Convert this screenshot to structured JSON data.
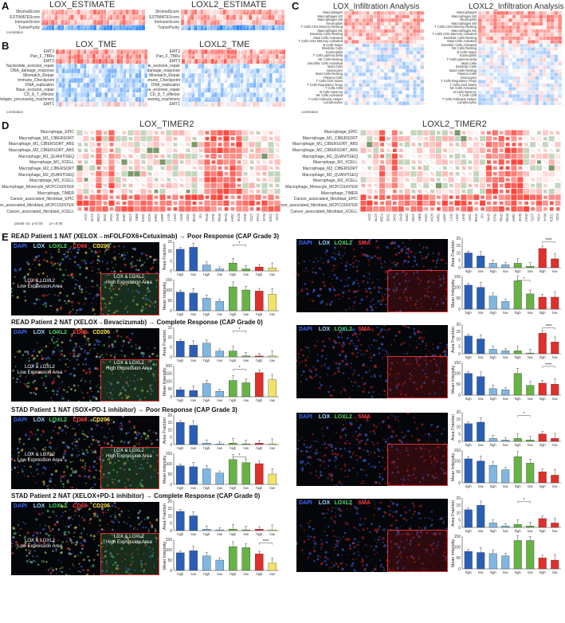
{
  "panels": {
    "A": {
      "label": "A",
      "left_title": "LOX_ESTIMATE",
      "right_title": "LOXL2_ESTIMATE",
      "rows": [
        "StromalScore",
        "ESTIMATEScore",
        "ImmuneScore",
        "TumorPurity"
      ],
      "legend": "correlation"
    },
    "B": {
      "label": "B",
      "left_title": "LOX_TME",
      "right_title": "LOXL2_TME",
      "rows": [
        "EMT2",
        "Pan_F_TBRs",
        "EMT3",
        "Nucleotide_excision_repair",
        "DNA_damage_response",
        "Mismatch_Repair",
        "Immune_Checkpoint",
        "DNA_replication",
        "Base_excision_repair",
        "CD_8_T_effector",
        "Antigen_processing_machinery",
        "EMT1"
      ],
      "legend": "correlation"
    },
    "C": {
      "label": "C",
      "left_title": "LOX_Infiltration Analysis",
      "right_title": "LOXL2_Infiltration Analysis",
      "left_rows": [
        "Macrophages",
        "Macrophages M2",
        "Macrophages M0",
        "Neutrophils",
        "T Cells CD4 Memory Resting",
        "Macrophages M1",
        "Dendritic Cells Resting",
        "Mast Cells Activated",
        "T Cells CD4 Memory Activated",
        "B Cells Naive",
        "Dendritic Cells",
        "Eosinophils",
        "T Cells gamma delta",
        "NK Cells Resting",
        "Dendritic Cells Activated",
        "Mast Cells",
        "Monocytes",
        "Mast Cells Resting",
        "Plasma Cells",
        "T Cells CD4 Naive",
        "T Cells Regulatory Tregs",
        "T Cells CD8",
        "B Cells Memory",
        "NK Cells Activated",
        "T Cells Follicular Helper",
        "Lymphocytes"
      ],
      "right_rows": [
        "Macrophages",
        "Macrophages M2",
        "Neutrophils",
        "Macrophages M0",
        "T Cells CD4 Memory Resting",
        "Macrophages M1",
        "T Cells CD4 Memory Activated",
        "Dendritic Cells Resting",
        "Mast Cells Activated",
        "Dendritic Cells Activated",
        "NK Cells Resting",
        "B Cells Naive",
        "Eosinophils",
        "T Cells gamma delta",
        "Mast Cells",
        "Dendritic Cells",
        "Mast Cells Resting",
        "Plasma Cells",
        "Monocytes",
        "T Cells Regulatory Tregs",
        "T Cells CD4 Naive",
        "NK Cells Activated",
        "B Cells Memory",
        "T Cells CD8",
        "T Cells Follicular Helper",
        "Lymphocytes"
      ],
      "legend": "correlation"
    },
    "D": {
      "label": "D",
      "left_title": "LOX_TIMER2",
      "right_title": "LOXL2_TIMER2",
      "rows": [
        "Macrophage_EPIC",
        "Macrophage_M1_CIBERSORT",
        "Macrophage_M1_CIBERSORT_ABS",
        "Macrophage_M2_CIBERSORT_ABS",
        "Macrophage_M1_QUANTISEQ",
        "Macrophage_M1_XCELL",
        "Macrophage_M2_CIBERSORT",
        "Macrophage_M2_QUANTISEQ",
        "Macrophage_M2_XCELL",
        "Macrophage_Monocyte_MCPCOUNTER",
        "Macrophage_TIMER",
        "Cancer_associated_fibroblast_EPIC",
        "Cancer_associated_fibroblast_MCPCOUNTER",
        "Cancer_associated_fibroblast_XCELL"
      ],
      "cancers": [
        "ACC",
        "BLCA",
        "BRCA",
        "CESC",
        "CHOL",
        "COAD",
        "DLBC",
        "ESCA",
        "GBM",
        "HNSC",
        "KICH",
        "KIRC",
        "KIRP",
        "LGG",
        "LIHC",
        "LUAD",
        "LUSC",
        "MESO",
        "OV",
        "PAAD",
        "PCPG",
        "PRAD",
        "READ",
        "SARC",
        "SKCM",
        "STAD",
        "TGCT",
        "THCA",
        "THYM",
        "UCEC",
        "UCS",
        "UVM"
      ],
      "legend_items": [
        "partial cor",
        "p<0.05",
        "p>=0.05"
      ]
    },
    "E": {
      "label": "E"
    }
  },
  "colors": {
    "red": "#d7301f",
    "blue": "#2166ac",
    "green": "#4dac26",
    "yellow": "#f2e24a",
    "bar_blue": "#2b5fb6",
    "bar_lblue": "#7fb7e0",
    "bar_green": "#67b346",
    "bar_red": "#e0302c",
    "bar_yellow": "#f1e36a"
  },
  "cases": [
    {
      "title": "READ Patient 1 NAT (XELOX→mFOLFOX6+Cetuximab) → Poor Response (CAP Grade 3)",
      "left": {
        "stains": [
          "DAPI",
          "LOX",
          "LOXL2",
          "CD68",
          "CD206"
        ],
        "low": "LOX & LOXL2\nLow Expression Area",
        "high": "LOX & LOXL2\nHigh Expression Area",
        "area": [
          11,
          12,
          3,
          1,
          4,
          1,
          2,
          1.5
        ],
        "area_max": 15,
        "area_ticks": [
          "15",
          "10",
          "5",
          "0"
        ],
        "mean": [
          90,
          85,
          60,
          45,
          115,
          100,
          95,
          80
        ],
        "mean_max": 150,
        "mean_ticks": [
          "150",
          "100",
          "50",
          "0"
        ],
        "sig_area": "*",
        "sig_mean": ""
      },
      "right": {
        "stains": [
          "DAPI",
          "LOX",
          "LOXL2",
          "SMA"
        ],
        "area": [
          10,
          8,
          3,
          2,
          3,
          1,
          13,
          6
        ],
        "area_max": 20,
        "area_ticks": [
          "20",
          "15",
          "10",
          "5",
          "0"
        ],
        "mean": [
          110,
          100,
          60,
          35,
          130,
          70,
          55,
          55
        ],
        "mean_max": 150,
        "mean_ticks": [
          "150",
          "100",
          "50",
          "0"
        ],
        "sig_area": "****",
        "sig_mean": "*"
      }
    },
    {
      "title": "READ Patient 2 NAT (XELOX→Bevacizumab) → Complete Response (CAP Grade 0)",
      "left": {
        "stains": [
          "DAPI",
          "LOX",
          "LOXL2",
          "CD68",
          "CD206"
        ],
        "area": [
          8,
          6,
          7,
          3,
          3,
          0.5,
          0.5,
          0.5
        ],
        "area_max": 15,
        "area_ticks": [
          "15",
          "10",
          "5",
          "0"
        ],
        "mean": [
          45,
          40,
          85,
          35,
          105,
          90,
          155,
          110
        ],
        "mean_max": 200,
        "mean_ticks": [
          "200",
          "150",
          "100",
          "50",
          "0"
        ],
        "sig_area": "*",
        "sig_mean": "*"
      },
      "right": {
        "stains": [
          "DAPI",
          "LOX",
          "LOXL2",
          "SMA"
        ],
        "area": [
          12,
          10,
          3,
          2,
          2,
          0.5,
          14,
          8
        ],
        "area_max": 20,
        "area_ticks": [
          "20",
          "15",
          "10",
          "5",
          "0"
        ],
        "mean": [
          100,
          85,
          30,
          25,
          100,
          45,
          55,
          50
        ],
        "mean_max": 150,
        "mean_ticks": [
          "150",
          "100",
          "50",
          "0"
        ],
        "sig_area": "****",
        "sig_mean": "****"
      }
    },
    {
      "title": "STAD Patient 1 NAT (SOX+PD-1 inhibitor) → Poor Response (CAP Grade 3)",
      "left": {
        "stains": [
          "DAPI",
          "LOX",
          "LOXL2",
          "CD68",
          "CD206"
        ],
        "area": [
          15,
          13,
          1,
          0.5,
          1,
          0.5,
          1,
          0.5
        ],
        "area_max": 20,
        "area_ticks": [
          "20",
          "15",
          "10",
          "5",
          "0"
        ],
        "mean": [
          90,
          85,
          75,
          55,
          120,
          105,
          100,
          50
        ],
        "mean_max": 150,
        "mean_ticks": [
          "150",
          "100",
          "50",
          "0"
        ],
        "sig_area": "",
        "sig_mean": "*"
      },
      "right": {
        "stains": [
          "DAPI",
          "LOX",
          "LOXL2",
          "SMA"
        ],
        "area": [
          12,
          13,
          2,
          1,
          2,
          1,
          5,
          2
        ],
        "area_max": 20,
        "area_ticks": [
          "20",
          "15",
          "10",
          "5",
          "0"
        ],
        "mean": [
          110,
          100,
          80,
          60,
          120,
          90,
          50,
          35
        ],
        "mean_max": 150,
        "mean_ticks": [
          "150",
          "100",
          "50",
          "0"
        ],
        "sig_area": "*",
        "sig_mean": ""
      }
    },
    {
      "title": "STAD Patient 2 NAT (XELOX+PD-1 inhibitor) → Complete Response (CAP Grade 0)",
      "left": {
        "stains": [
          "DAPI",
          "LOX",
          "LOXL2",
          "CD68",
          "CD206"
        ],
        "area": [
          13,
          10,
          1,
          0.5,
          1,
          0.5,
          1,
          0.5
        ],
        "area_max": 20,
        "area_ticks": [
          "20",
          "15",
          "10",
          "5",
          "0"
        ],
        "mean": [
          85,
          95,
          70,
          50,
          115,
          110,
          80,
          35
        ],
        "mean_max": 150,
        "mean_ticks": [
          "150",
          "100",
          "50",
          "0"
        ],
        "sig_area": "",
        "sig_mean": "****"
      },
      "right": {
        "stains": [
          "DAPI",
          "LOX",
          "LOXL2",
          "SMA"
        ],
        "area": [
          12,
          15,
          3,
          1,
          2,
          1,
          6,
          3
        ],
        "area_max": 20,
        "area_ticks": [
          "20",
          "15",
          "10",
          "5",
          "0"
        ],
        "mean": [
          80,
          75,
          70,
          60,
          130,
          130,
          50,
          40
        ],
        "mean_max": 150,
        "mean_ticks": [
          "150",
          "100",
          "50",
          "0"
        ],
        "sig_area": "*",
        "sig_mean": ""
      }
    }
  ],
  "axes": {
    "area": "Area Fraction",
    "mean": "Mean Intensity",
    "group_labels": [
      "high",
      "low"
    ]
  }
}
